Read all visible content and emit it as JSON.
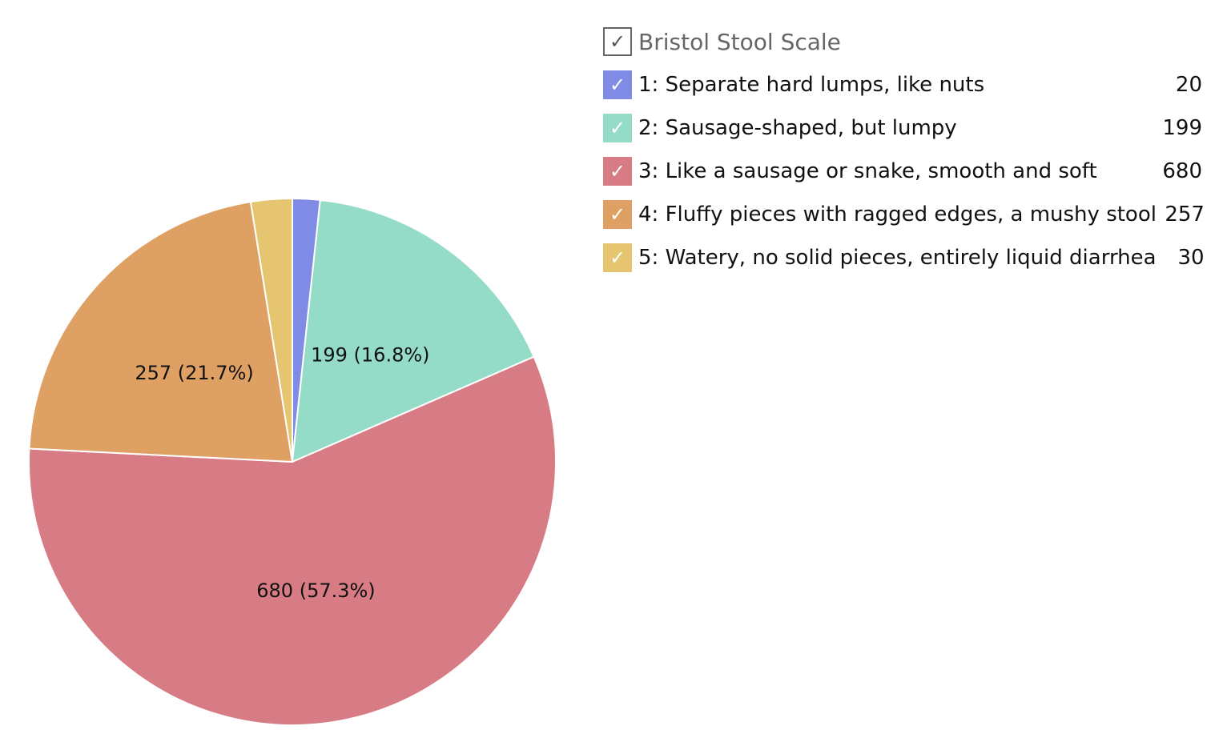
{
  "chart_data": {
    "type": "pie",
    "title": "Bristol Stool Scale",
    "categories": [
      "1: Separate hard lumps, like nuts",
      "2: Sausage-shaped, but lumpy",
      "3: Like a sausage or snake, smooth and soft",
      "4: Fluffy pieces with ragged edges, a mushy stool",
      "5: Watery, no solid pieces, entirely liquid diarrhea"
    ],
    "values": [
      20,
      199,
      680,
      257,
      30
    ],
    "data_labels": [
      "",
      "199 (16.8%)",
      "680 (57.3%)",
      "257 (21.7%)",
      ""
    ],
    "colors": [
      "#808be6",
      "#95dcc8",
      "#d77b84",
      "#dfa064",
      "#e5c56f"
    ],
    "legend_placement": "right",
    "start_angle": "top, clockwise"
  },
  "legend": {
    "checkmark": "✓"
  }
}
